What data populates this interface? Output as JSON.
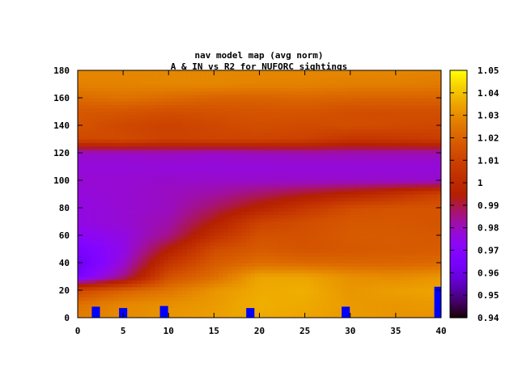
{
  "chart_data": {
    "type": "heatmap",
    "title": "nav model map (avg norm)",
    "subtitle": "A & IN vs R2 for NUFORC sightings",
    "xlabel": "",
    "ylabel": "",
    "xlim": [
      0,
      40
    ],
    "ylim": [
      0,
      180
    ],
    "xticks": [
      "0",
      "5",
      "10",
      "15",
      "20",
      "25",
      "30",
      "35",
      "40"
    ],
    "yticks": [
      "0",
      "20",
      "40",
      "60",
      "80",
      "100",
      "120",
      "140",
      "160",
      "180"
    ],
    "colorbar": {
      "range": [
        0.94,
        1.05
      ],
      "ticks": [
        "0.94",
        "0.95",
        "0.96",
        "0.97",
        "0.98",
        "0.99",
        "1",
        "1.01",
        "1.02",
        "1.03",
        "1.04",
        "1.05"
      ],
      "palette": "black-purple-red-orange-yellow"
    },
    "x": [
      0,
      5,
      10,
      15,
      20,
      25,
      30,
      35,
      40
    ],
    "y": [
      0,
      10,
      20,
      30,
      40,
      50,
      60,
      70,
      80,
      90,
      100,
      110,
      120,
      130,
      140,
      150,
      160,
      170,
      180
    ],
    "z": [
      [
        1.027,
        1.03,
        1.032,
        1.034,
        1.036,
        1.035,
        1.033,
        1.032,
        1.031
      ],
      [
        1.024,
        1.029,
        1.031,
        1.033,
        1.037,
        1.036,
        1.033,
        1.032,
        1.033
      ],
      [
        1.012,
        1.02,
        1.025,
        1.032,
        1.036,
        1.037,
        1.032,
        1.034,
        1.035
      ],
      [
        0.965,
        0.985,
        1.015,
        1.023,
        1.035,
        1.035,
        1.031,
        1.03,
        1.032
      ],
      [
        0.96,
        0.978,
        1.005,
        1.018,
        1.023,
        1.022,
        1.021,
        1.021,
        1.022
      ],
      [
        0.965,
        0.975,
        0.995,
        1.013,
        1.018,
        1.016,
        1.017,
        1.018,
        1.018
      ],
      [
        0.972,
        0.976,
        0.985,
        1.003,
        1.015,
        1.015,
        1.018,
        1.018,
        1.017
      ],
      [
        0.976,
        0.978,
        0.982,
        0.995,
        1.01,
        1.014,
        1.017,
        1.017,
        1.016
      ],
      [
        0.976,
        0.978,
        0.98,
        0.988,
        0.997,
        1.006,
        1.014,
        1.016,
        1.016
      ],
      [
        0.977,
        0.978,
        0.98,
        0.983,
        0.988,
        0.993,
        0.998,
        1.004,
        1.011
      ],
      [
        0.978,
        0.978,
        0.979,
        0.979,
        0.979,
        0.979,
        0.979,
        0.979,
        0.979
      ],
      [
        0.977,
        0.977,
        0.977,
        0.977,
        0.977,
        0.977,
        0.977,
        0.977,
        0.977
      ],
      [
        0.979,
        0.979,
        0.98,
        0.979,
        0.98,
        0.981,
        0.981,
        0.981,
        0.981
      ],
      [
        1.012,
        1.013,
        1.01,
        1.011,
        1.011,
        1.01,
        1.005,
        1.006,
        1.008
      ],
      [
        1.016,
        1.012,
        1.01,
        1.012,
        1.014,
        1.013,
        1.014,
        1.013,
        1.012
      ],
      [
        1.017,
        1.016,
        1.014,
        1.015,
        1.016,
        1.016,
        1.014,
        1.014,
        1.014
      ],
      [
        1.022,
        1.024,
        1.022,
        1.02,
        1.02,
        1.021,
        1.02,
        1.02,
        1.02
      ],
      [
        1.028,
        1.028,
        1.029,
        1.029,
        1.028,
        1.028,
        1.027,
        1.027,
        1.026
      ],
      [
        1.029,
        1.029,
        1.029,
        1.029,
        1.029,
        1.029,
        1.029,
        1.029,
        1.028
      ]
    ],
    "bars": {
      "color": "#0000ff",
      "x": [
        2,
        5,
        9.5,
        19,
        29.5,
        39.7
      ],
      "values": [
        8,
        7,
        8.5,
        7,
        8,
        22.5
      ]
    }
  }
}
